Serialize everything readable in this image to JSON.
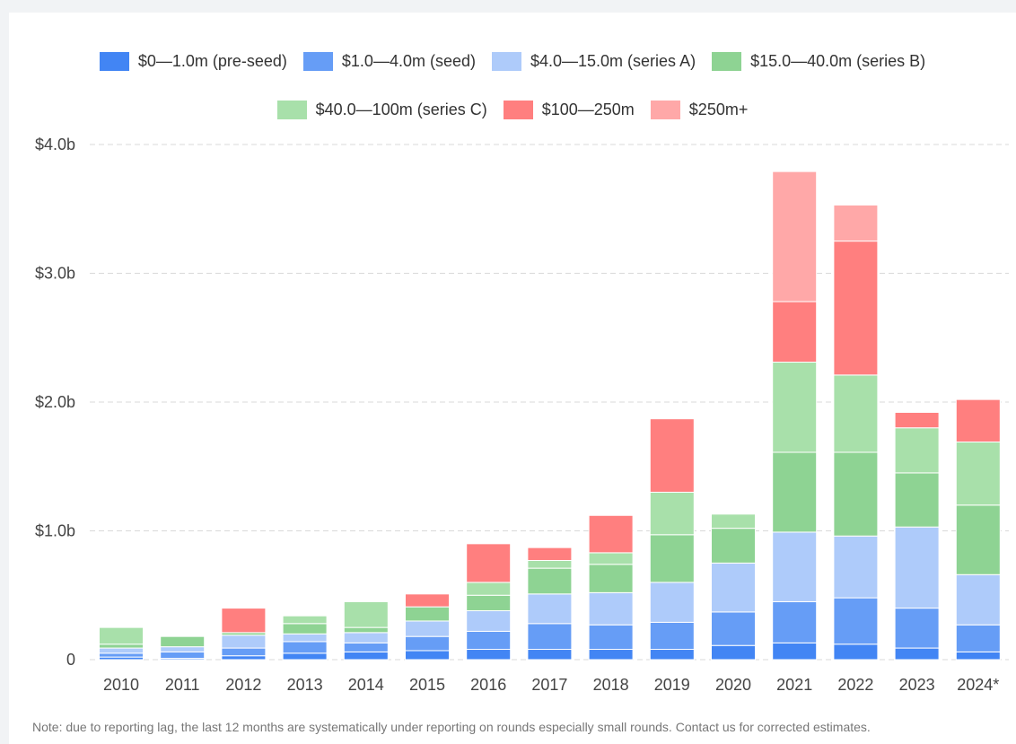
{
  "chart_data": {
    "type": "bar",
    "stacked": true,
    "title": "",
    "xlabel": "",
    "ylabel": "",
    "ylim": [
      0,
      4.0
    ],
    "yticks": [
      0,
      1.0,
      2.0,
      3.0,
      4.0
    ],
    "ytick_labels": [
      "0",
      "$1.0b",
      "$2.0b",
      "$3.0b",
      "$4.0b"
    ],
    "grid": true,
    "legend_position": "top-center",
    "categories": [
      "2010",
      "2011",
      "2012",
      "2013",
      "2014",
      "2015",
      "2016",
      "2017",
      "2018",
      "2019",
      "2020",
      "2021",
      "2022",
      "2023",
      "2024*"
    ],
    "series": [
      {
        "name": "$0—1.0m (pre-seed)",
        "color": "#4285f4",
        "values": [
          0.02,
          0.01,
          0.03,
          0.05,
          0.06,
          0.07,
          0.08,
          0.08,
          0.08,
          0.08,
          0.11,
          0.13,
          0.12,
          0.09,
          0.06
        ]
      },
      {
        "name": "$1.0—4.0m (seed)",
        "color": "#669df6",
        "values": [
          0.03,
          0.05,
          0.06,
          0.09,
          0.07,
          0.11,
          0.14,
          0.2,
          0.19,
          0.21,
          0.26,
          0.32,
          0.36,
          0.31,
          0.21
        ]
      },
      {
        "name": "$4.0—15.0m (series A)",
        "color": "#aecbfa",
        "values": [
          0.04,
          0.04,
          0.1,
          0.06,
          0.08,
          0.12,
          0.16,
          0.23,
          0.25,
          0.31,
          0.38,
          0.54,
          0.48,
          0.63,
          0.39
        ]
      },
      {
        "name": "$15.0—40.0m (series B)",
        "color": "#8ed393",
        "values": [
          0.03,
          0.08,
          0.02,
          0.08,
          0.04,
          0.11,
          0.12,
          0.2,
          0.22,
          0.37,
          0.27,
          0.62,
          0.65,
          0.42,
          0.54
        ]
      },
      {
        "name": "$40.0—100m (series C)",
        "color": "#a8e0aa",
        "values": [
          0.13,
          0.0,
          0.0,
          0.06,
          0.2,
          0.0,
          0.1,
          0.06,
          0.09,
          0.33,
          0.11,
          0.7,
          0.6,
          0.35,
          0.49
        ]
      },
      {
        "name": "$100—250m",
        "color": "#ff7f7f",
        "values": [
          0,
          0,
          0.19,
          0,
          0,
          0.1,
          0.3,
          0.1,
          0.29,
          0.57,
          0,
          0.47,
          1.04,
          0.12,
          0.33
        ]
      },
      {
        "name": "$250m+",
        "color": "#ffa8a8",
        "values": [
          0,
          0,
          0,
          0,
          0,
          0,
          0,
          0,
          0,
          0,
          0,
          1.01,
          0.28,
          0,
          0
        ]
      }
    ]
  },
  "note": "Note: due to reporting lag, the last 12 months are systematically under reporting on rounds especially small rounds. Contact us for corrected estimates."
}
